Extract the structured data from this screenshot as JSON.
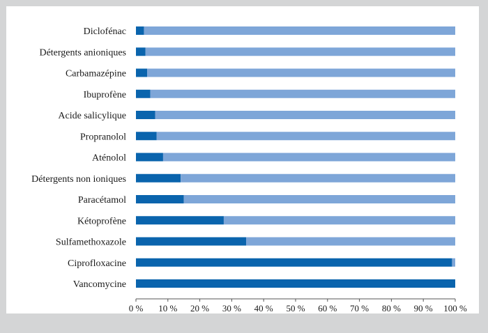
{
  "chart_data": {
    "type": "bar",
    "orientation": "horizontal",
    "stacked": true,
    "normalized_percent": true,
    "categories": [
      "Diclofénac",
      "Détergents anioniques",
      "Carbamazépine",
      "Ibuprofène",
      "Acide salicylique",
      "Propranolol",
      "Aténolol",
      "Détergents non ioniques",
      "Paracétamol",
      "Kétoprofène",
      "Sulfamethoxazole",
      "Ciprofloxacine",
      "Vancomycine"
    ],
    "series": [
      {
        "values": [
          2.5,
          3,
          3.5,
          4.5,
          6,
          6.5,
          8.5,
          14,
          15,
          27.5,
          34.5,
          99,
          100
        ],
        "color": "#0a64ad"
      },
      {
        "values": [
          97.5,
          97,
          96.5,
          95.5,
          94,
          93.5,
          91.5,
          86,
          85,
          72.5,
          65.5,
          1,
          0
        ],
        "color": "#7ea6d8"
      }
    ],
    "xlim": [
      0,
      100
    ],
    "x_ticks": [
      "0 %",
      "10 %",
      "20 %",
      "30 %",
      "40 %",
      "50 %",
      "60 %",
      "70 %",
      "80 %",
      "90 %",
      "100 %"
    ],
    "xlabel": "",
    "ylabel": "",
    "title": "",
    "grid": false,
    "legend": "none"
  }
}
